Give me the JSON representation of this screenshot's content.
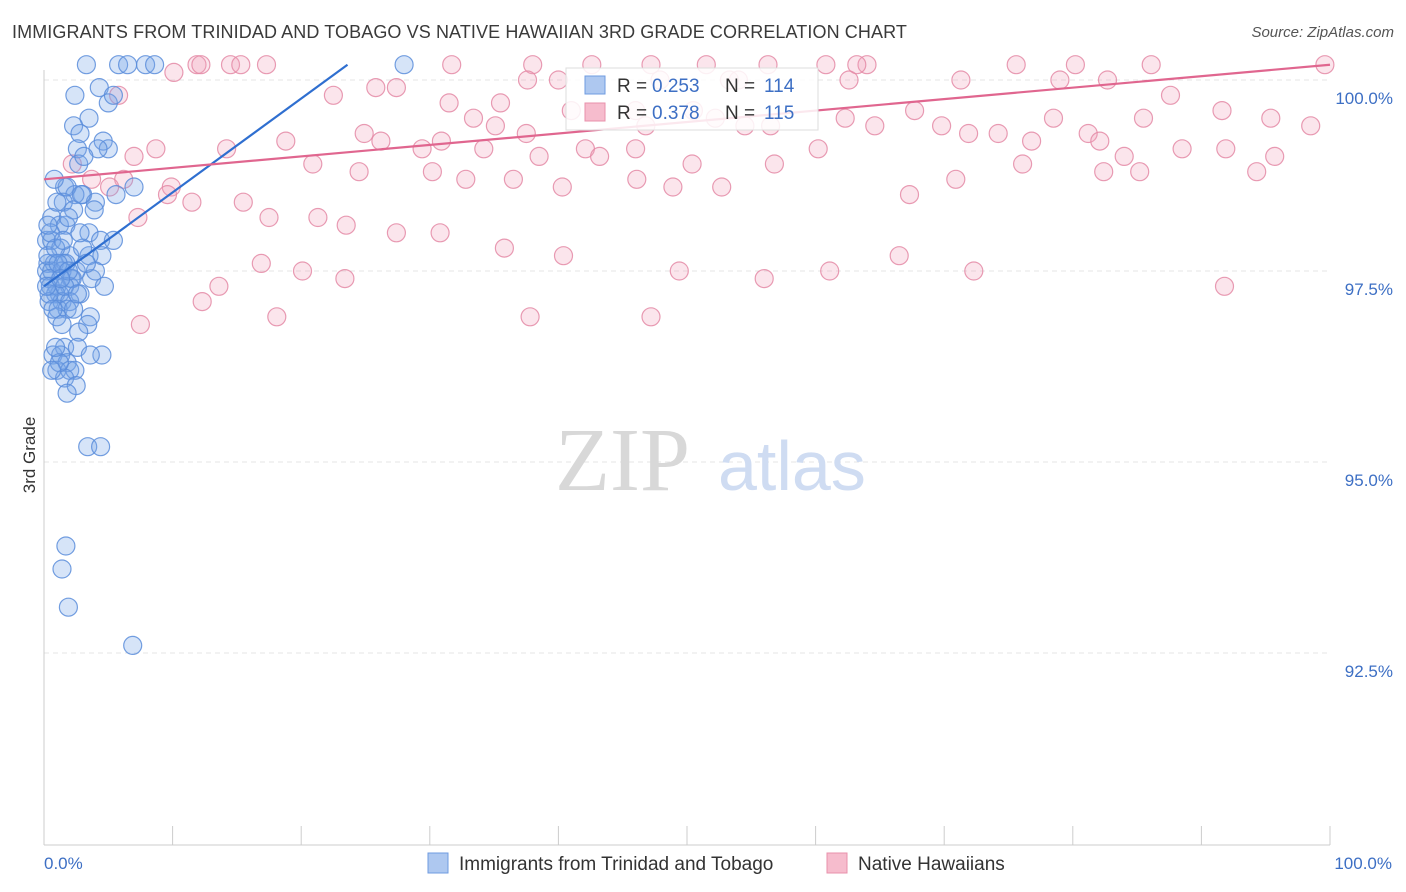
{
  "header": {
    "title": "IMMIGRANTS FROM TRINIDAD AND TOBAGO VS NATIVE HAWAIIAN 3RD GRADE CORRELATION CHART",
    "source": "Source: ZipAtlas.com"
  },
  "watermark": {
    "zip": "ZIP",
    "atlas": "atlas"
  },
  "chart_data": {
    "type": "scatter",
    "title": "IMMIGRANTS FROM TRINIDAD AND TOBAGO VS NATIVE HAWAIIAN 3RD GRADE CORRELATION CHART",
    "xlabel": "",
    "ylabel": "3rd Grade",
    "xlim": [
      0,
      100
    ],
    "ylim": [
      90.0,
      100.3
    ],
    "x_tick_labels": [
      "0.0%",
      "100.0%"
    ],
    "y_ticks": [
      {
        "value": 100.0,
        "label": "100.0%"
      },
      {
        "value": 97.5,
        "label": "97.5%"
      },
      {
        "value": 95.0,
        "label": "95.0%"
      },
      {
        "value": 92.5,
        "label": "92.5%"
      }
    ],
    "legend": [
      {
        "name": "Immigrants from Trinidad and Tobago",
        "r_label": "R = ",
        "r": "0.253",
        "n_label": "N = ",
        "n": "114",
        "color": "#6f9be0",
        "fill": "#aec8f0"
      },
      {
        "name": "Native Hawaiians",
        "r_label": "R = ",
        "r": "0.378",
        "n_label": "N = ",
        "n": "115",
        "color": "#e890ab",
        "fill": "#f6bccd"
      }
    ],
    "series": [
      {
        "name": "Immigrants from Trinidad and Tobago",
        "color": "#5b8ddb",
        "trend": {
          "x": [
            0.0,
            23.6
          ],
          "y": [
            97.3,
            100.2
          ],
          "color": "#2f6fd0"
        },
        "points": [
          [
            3.3,
            100.2
          ],
          [
            5.8,
            100.2
          ],
          [
            6.5,
            100.2
          ],
          [
            7.9,
            100.2
          ],
          [
            8.6,
            100.2
          ],
          [
            28.0,
            100.2
          ],
          [
            2.4,
            99.8
          ],
          [
            4.3,
            99.9
          ],
          [
            5.0,
            99.7
          ],
          [
            5.4,
            99.8
          ],
          [
            3.5,
            99.5
          ],
          [
            2.3,
            99.4
          ],
          [
            2.8,
            99.3
          ],
          [
            4.6,
            99.2
          ],
          [
            2.6,
            99.1
          ],
          [
            5.0,
            99.1
          ],
          [
            4.2,
            99.1
          ],
          [
            2.7,
            98.9
          ],
          [
            1.6,
            98.6
          ],
          [
            3.0,
            98.5
          ],
          [
            2.4,
            98.5
          ],
          [
            1.8,
            98.6
          ],
          [
            4.0,
            98.4
          ],
          [
            5.6,
            98.5
          ],
          [
            7.0,
            98.6
          ],
          [
            1.5,
            98.4
          ],
          [
            2.3,
            98.3
          ],
          [
            3.9,
            98.3
          ],
          [
            0.6,
            98.2
          ],
          [
            1.2,
            98.1
          ],
          [
            1.7,
            98.1
          ],
          [
            3.5,
            98.0
          ],
          [
            4.4,
            97.9
          ],
          [
            5.4,
            97.9
          ],
          [
            0.2,
            97.9
          ],
          [
            0.6,
            97.9
          ],
          [
            1.3,
            97.8
          ],
          [
            2.0,
            97.7
          ],
          [
            3.5,
            97.7
          ],
          [
            4.5,
            97.7
          ],
          [
            0.3,
            97.6
          ],
          [
            0.8,
            97.6
          ],
          [
            1.5,
            97.6
          ],
          [
            1.7,
            97.6
          ],
          [
            2.5,
            97.5
          ],
          [
            0.2,
            97.5
          ],
          [
            0.6,
            97.5
          ],
          [
            1.4,
            97.5
          ],
          [
            2.1,
            97.4
          ],
          [
            3.7,
            97.4
          ],
          [
            0.4,
            97.4
          ],
          [
            1.0,
            97.3
          ],
          [
            2.0,
            97.3
          ],
          [
            4.7,
            97.3
          ],
          [
            0.5,
            97.3
          ],
          [
            1.2,
            97.2
          ],
          [
            2.8,
            97.2
          ],
          [
            0.9,
            97.2
          ],
          [
            0.4,
            97.1
          ],
          [
            1.4,
            97.1
          ],
          [
            2.0,
            97.1
          ],
          [
            1.1,
            97.0
          ],
          [
            1.8,
            97.0
          ],
          [
            1.0,
            96.9
          ],
          [
            3.6,
            96.9
          ],
          [
            1.4,
            96.8
          ],
          [
            3.4,
            96.8
          ],
          [
            2.7,
            96.7
          ],
          [
            1.6,
            96.5
          ],
          [
            2.6,
            96.5
          ],
          [
            0.7,
            96.4
          ],
          [
            1.3,
            96.4
          ],
          [
            4.5,
            96.4
          ],
          [
            3.6,
            96.4
          ],
          [
            1.8,
            96.3
          ],
          [
            1.0,
            96.2
          ],
          [
            2.0,
            96.2
          ],
          [
            2.4,
            96.2
          ],
          [
            1.6,
            96.1
          ],
          [
            2.5,
            96.0
          ],
          [
            1.8,
            95.9
          ],
          [
            3.4,
            95.2
          ],
          [
            4.4,
            95.2
          ],
          [
            1.7,
            93.9
          ],
          [
            1.4,
            93.6
          ],
          [
            1.9,
            93.1
          ],
          [
            6.9,
            92.6
          ],
          [
            0.3,
            97.7
          ],
          [
            0.9,
            97.8
          ],
          [
            2.2,
            97.4
          ],
          [
            1.1,
            97.6
          ],
          [
            0.5,
            98.0
          ],
          [
            1.9,
            98.2
          ],
          [
            2.9,
            98.5
          ],
          [
            0.8,
            98.7
          ],
          [
            3.1,
            99.0
          ],
          [
            0.4,
            97.2
          ],
          [
            1.6,
            97.3
          ],
          [
            2.3,
            97.0
          ],
          [
            0.7,
            97.0
          ],
          [
            1.2,
            96.3
          ],
          [
            3.0,
            97.8
          ],
          [
            0.2,
            97.3
          ],
          [
            1.5,
            97.9
          ],
          [
            2.6,
            97.2
          ],
          [
            0.9,
            96.5
          ],
          [
            4.0,
            97.5
          ],
          [
            1.9,
            97.5
          ],
          [
            0.6,
            96.2
          ],
          [
            1.3,
            97.4
          ],
          [
            2.8,
            98.0
          ],
          [
            3.3,
            97.6
          ],
          [
            0.3,
            98.1
          ],
          [
            1.0,
            98.4
          ]
        ]
      },
      {
        "name": "Native Hawaiians",
        "color": "#e48aa6",
        "trend": {
          "x": [
            0.0,
            100.0
          ],
          "y": [
            98.7,
            100.2
          ],
          "color": "#e0668f"
        },
        "points": [
          [
            11.9,
            100.2
          ],
          [
            12.2,
            100.2
          ],
          [
            14.5,
            100.2
          ],
          [
            15.3,
            100.2
          ],
          [
            17.3,
            100.2
          ],
          [
            31.7,
            100.2
          ],
          [
            38.0,
            100.2
          ],
          [
            42.6,
            100.2
          ],
          [
            47.2,
            100.2
          ],
          [
            51.5,
            100.2
          ],
          [
            56.3,
            100.2
          ],
          [
            60.8,
            100.2
          ],
          [
            64.0,
            100.2
          ],
          [
            75.6,
            100.2
          ],
          [
            80.2,
            100.2
          ],
          [
            86.1,
            100.2
          ],
          [
            99.6,
            100.2
          ],
          [
            37.6,
            100.0
          ],
          [
            40.0,
            100.0
          ],
          [
            47.9,
            100.0
          ],
          [
            53.3,
            100.0
          ],
          [
            54.0,
            100.0
          ],
          [
            62.6,
            100.0
          ],
          [
            79.0,
            100.0
          ],
          [
            82.7,
            100.0
          ],
          [
            63.2,
            100.2
          ],
          [
            71.3,
            100.0
          ],
          [
            10.1,
            100.1
          ],
          [
            5.8,
            99.8
          ],
          [
            22.5,
            99.8
          ],
          [
            25.8,
            99.9
          ],
          [
            35.5,
            99.7
          ],
          [
            27.4,
            99.9
          ],
          [
            31.5,
            99.7
          ],
          [
            46.0,
            99.6
          ],
          [
            54.5,
            99.4
          ],
          [
            33.4,
            99.5
          ],
          [
            35.1,
            99.4
          ],
          [
            37.5,
            99.3
          ],
          [
            41.0,
            99.6
          ],
          [
            46.8,
            99.4
          ],
          [
            50.5,
            99.6
          ],
          [
            52.2,
            99.5
          ],
          [
            56.5,
            99.4
          ],
          [
            62.3,
            99.5
          ],
          [
            67.7,
            99.6
          ],
          [
            71.9,
            99.3
          ],
          [
            76.8,
            99.2
          ],
          [
            78.5,
            99.5
          ],
          [
            85.5,
            99.5
          ],
          [
            87.6,
            99.8
          ],
          [
            91.6,
            99.6
          ],
          [
            95.4,
            99.5
          ],
          [
            24.9,
            99.3
          ],
          [
            26.2,
            99.2
          ],
          [
            29.4,
            99.1
          ],
          [
            30.9,
            99.2
          ],
          [
            34.2,
            99.1
          ],
          [
            38.5,
            99.0
          ],
          [
            42.1,
            99.1
          ],
          [
            43.2,
            99.0
          ],
          [
            46.0,
            99.1
          ],
          [
            50.4,
            98.9
          ],
          [
            56.8,
            98.9
          ],
          [
            60.2,
            99.1
          ],
          [
            64.6,
            99.4
          ],
          [
            69.8,
            99.4
          ],
          [
            74.2,
            99.3
          ],
          [
            81.2,
            99.3
          ],
          [
            82.1,
            99.2
          ],
          [
            84.0,
            99.0
          ],
          [
            88.5,
            99.1
          ],
          [
            91.9,
            99.1
          ],
          [
            94.3,
            98.8
          ],
          [
            95.7,
            99.0
          ],
          [
            98.5,
            99.4
          ],
          [
            18.8,
            99.2
          ],
          [
            14.2,
            99.1
          ],
          [
            8.7,
            99.1
          ],
          [
            7.0,
            99.0
          ],
          [
            20.9,
            98.9
          ],
          [
            24.5,
            98.8
          ],
          [
            30.2,
            98.8
          ],
          [
            32.8,
            98.7
          ],
          [
            36.5,
            98.7
          ],
          [
            40.3,
            98.6
          ],
          [
            46.1,
            98.7
          ],
          [
            48.9,
            98.6
          ],
          [
            52.7,
            98.6
          ],
          [
            67.3,
            98.5
          ],
          [
            70.9,
            98.7
          ],
          [
            76.1,
            98.9
          ],
          [
            82.4,
            98.8
          ],
          [
            85.2,
            98.8
          ],
          [
            6.2,
            98.7
          ],
          [
            9.9,
            98.6
          ],
          [
            11.5,
            98.4
          ],
          [
            15.5,
            98.4
          ],
          [
            17.5,
            98.2
          ],
          [
            21.3,
            98.2
          ],
          [
            23.5,
            98.1
          ],
          [
            27.4,
            98.0
          ],
          [
            30.8,
            98.0
          ],
          [
            35.8,
            97.8
          ],
          [
            40.4,
            97.7
          ],
          [
            49.4,
            97.5
          ],
          [
            56.0,
            97.4
          ],
          [
            61.1,
            97.5
          ],
          [
            66.5,
            97.7
          ],
          [
            72.3,
            97.5
          ],
          [
            91.8,
            97.3
          ],
          [
            2.2,
            98.9
          ],
          [
            3.7,
            98.7
          ],
          [
            5.1,
            98.6
          ],
          [
            7.3,
            98.2
          ],
          [
            9.6,
            98.5
          ],
          [
            13.6,
            97.3
          ],
          [
            16.9,
            97.6
          ],
          [
            20.1,
            97.5
          ],
          [
            12.3,
            97.1
          ],
          [
            18.1,
            96.9
          ],
          [
            7.5,
            96.8
          ],
          [
            37.8,
            96.9
          ],
          [
            47.2,
            96.9
          ],
          [
            23.4,
            97.4
          ]
        ]
      }
    ]
  },
  "bottom_legend": {
    "items": [
      {
        "label": "Immigrants from Trinidad and Tobago"
      },
      {
        "label": "Native Hawaiians"
      }
    ]
  }
}
